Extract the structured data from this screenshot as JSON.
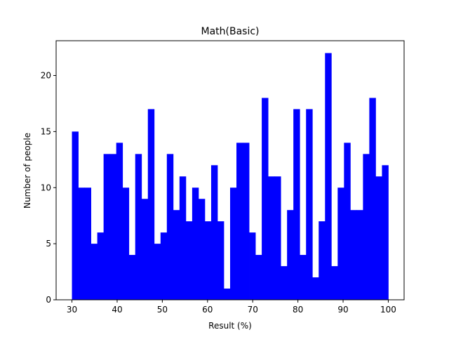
{
  "chart_data": {
    "type": "bar",
    "title": "Math(Basic)",
    "xlabel": "Result (%)",
    "ylabel": "Number of people",
    "bin_start": 30,
    "bin_width": 1.4,
    "values": [
      15,
      10,
      10,
      5,
      6,
      13,
      13,
      14,
      10,
      4,
      13,
      9,
      17,
      5,
      6,
      13,
      8,
      11,
      7,
      10,
      9,
      7,
      12,
      7,
      1,
      10,
      14,
      14,
      6,
      4,
      18,
      11,
      11,
      3,
      8,
      17,
      4,
      17,
      2,
      7,
      22,
      3,
      10,
      14,
      8,
      8,
      13,
      18,
      11,
      12
    ],
    "xlim": [
      26.5,
      103.5
    ],
    "ylim": [
      0,
      23.1
    ],
    "xticks": [
      30,
      40,
      50,
      60,
      70,
      80,
      90,
      100
    ],
    "yticks": [
      0,
      5,
      10,
      15,
      20
    ],
    "bar_color": "#0000ff",
    "grid": false
  }
}
